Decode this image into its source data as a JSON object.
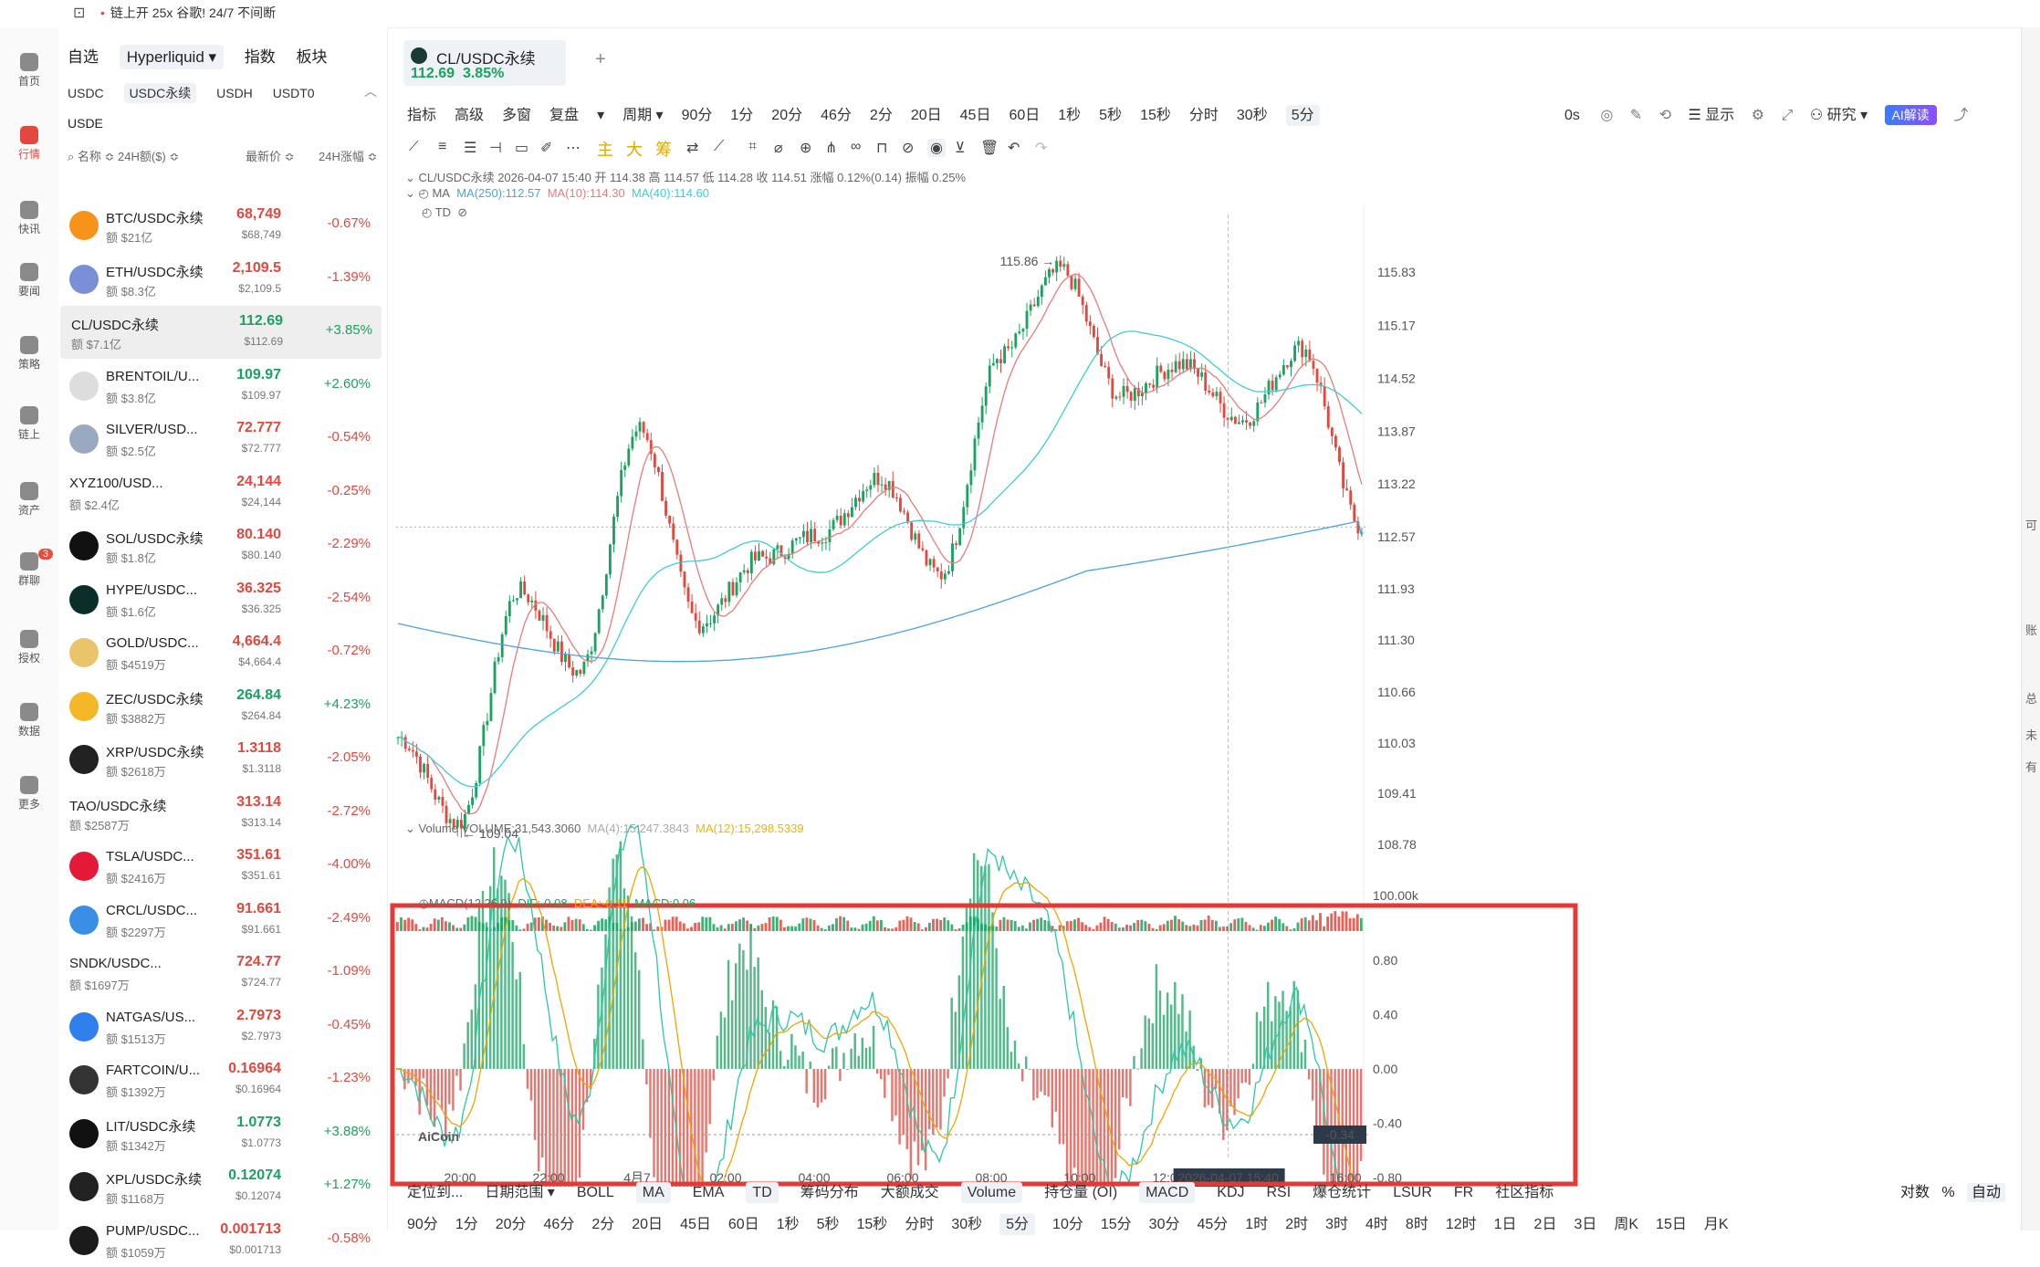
{
  "banner": {
    "text": "链上开 25x 谷歌! 24/7 不间断"
  },
  "rail": [
    {
      "label": "首页",
      "icon": "home-icon"
    },
    {
      "label": "行情",
      "icon": "chart-bars-icon",
      "active": true
    },
    {
      "label": "快讯",
      "icon": "news-icon"
    },
    {
      "label": "要闻",
      "icon": "document-icon"
    },
    {
      "label": "策略",
      "icon": "robot-icon"
    },
    {
      "label": "链上",
      "icon": "chain-icon"
    },
    {
      "label": "资产",
      "icon": "wallet-icon"
    },
    {
      "label": "群聊",
      "icon": "chat-icon",
      "badge": "3"
    },
    {
      "label": "授权",
      "icon": "key-icon"
    },
    {
      "label": "数据",
      "icon": "data-icon"
    },
    {
      "label": "更多",
      "icon": "grid-icon"
    }
  ],
  "market": {
    "tabs": [
      "自选",
      "Hyperliquid ▾",
      "指数",
      "板块"
    ],
    "subtabs": [
      "USDC",
      "USDC永续",
      "USDH",
      "USDT0"
    ],
    "extra_tab": "USDE",
    "headers": {
      "name": "名称 ≎ 24H额($) ≎",
      "price": "最新价 ≎",
      "change": "24H涨幅 ≎"
    },
    "rows": [
      {
        "name": "BTC/USDC永续",
        "vol": "额 $21亿",
        "price": "68,749",
        "sub": "$68,749",
        "chg": "-0.67%",
        "dir": "dn",
        "color": "#f7931a"
      },
      {
        "name": "ETH/USDC永续",
        "vol": "额 $8.3亿",
        "price": "2,109.5",
        "sub": "$2,109.5",
        "chg": "-1.39%",
        "dir": "dn",
        "color": "#7b8fd6"
      },
      {
        "name": "CL/USDC永续",
        "vol": "额 $7.1亿",
        "price": "112.69",
        "sub": "$112.69",
        "chg": "+3.85%",
        "dir": "up",
        "color": "",
        "selected": true
      },
      {
        "name": "BRENTOIL/U...",
        "vol": "额 $3.8亿",
        "price": "109.97",
        "sub": "$109.97",
        "chg": "+2.60%",
        "dir": "up",
        "color": "#dddddd"
      },
      {
        "name": "SILVER/USD...",
        "vol": "额 $2.5亿",
        "price": "72.777",
        "sub": "$72.777",
        "chg": "-0.54%",
        "dir": "dn",
        "color": "#9aa9bf"
      },
      {
        "name": "XYZ100/USD...",
        "vol": "额 $2.4亿",
        "price": "24,144",
        "sub": "$24,144",
        "chg": "-0.25%",
        "dir": "dn",
        "color": ""
      },
      {
        "name": "SOL/USDC永续",
        "vol": "额 $1.8亿",
        "price": "80.140",
        "sub": "$80.140",
        "chg": "-2.29%",
        "dir": "dn",
        "color": "#111111"
      },
      {
        "name": "HYPE/USDC...",
        "vol": "额 $1.6亿",
        "price": "36.325",
        "sub": "$36.325",
        "chg": "-2.54%",
        "dir": "dn",
        "color": "#0b2e2a"
      },
      {
        "name": "GOLD/USDC...",
        "vol": "额 $4519万",
        "price": "4,664.4",
        "sub": "$4,664.4",
        "chg": "-0.72%",
        "dir": "dn",
        "color": "#e9c46a"
      },
      {
        "name": "ZEC/USDC永续",
        "vol": "额 $3882万",
        "price": "264.84",
        "sub": "$264.84",
        "chg": "+4.23%",
        "dir": "up",
        "color": "#f4b728"
      },
      {
        "name": "XRP/USDC永续",
        "vol": "额 $2618万",
        "price": "1.3118",
        "sub": "$1.3118",
        "chg": "-2.05%",
        "dir": "dn",
        "color": "#222222"
      },
      {
        "name": "TAO/USDC永续",
        "vol": "额 $2587万",
        "price": "313.14",
        "sub": "$313.14",
        "chg": "-2.72%",
        "dir": "dn",
        "color": ""
      },
      {
        "name": "TSLA/USDC...",
        "vol": "额 $2416万",
        "price": "351.61",
        "sub": "$351.61",
        "chg": "-4.00%",
        "dir": "dn",
        "color": "#e31937"
      },
      {
        "name": "CRCL/USDC...",
        "vol": "额 $2297万",
        "price": "91.661",
        "sub": "$91.661",
        "chg": "-2.49%",
        "dir": "dn",
        "color": "#3a8ee6"
      },
      {
        "name": "SNDK/USDC...",
        "vol": "额 $1697万",
        "price": "724.77",
        "sub": "$724.77",
        "chg": "-1.09%",
        "dir": "dn",
        "color": ""
      },
      {
        "name": "NATGAS/US...",
        "vol": "额 $1513万",
        "price": "2.7973",
        "sub": "$2.7973",
        "chg": "-0.45%",
        "dir": "dn",
        "color": "#2f80ed"
      },
      {
        "name": "FARTCOIN/U...",
        "vol": "额 $1392万",
        "price": "0.16964",
        "sub": "$0.16964",
        "chg": "-1.23%",
        "dir": "dn",
        "color": "#333333"
      },
      {
        "name": "LIT/USDC永续",
        "vol": "额 $1342万",
        "price": "1.0773",
        "sub": "$1.0773",
        "chg": "+3.88%",
        "dir": "up",
        "color": "#111111"
      },
      {
        "name": "XPL/USDC永续",
        "vol": "额 $1168万",
        "price": "0.12074",
        "sub": "$0.12074",
        "chg": "+1.27%",
        "dir": "up",
        "color": "#222222"
      },
      {
        "name": "PUMP/USDC...",
        "vol": "额 $1059万",
        "price": "0.001713",
        "sub": "$0.001713",
        "chg": "-0.58%",
        "dir": "dn",
        "color": "#1b1b1b"
      }
    ]
  },
  "symbol": {
    "name": "CL/USDC永续",
    "price": "112.69",
    "change": "3.85%",
    "add": "+"
  },
  "toolbar": [
    "指标",
    "高级",
    "多窗",
    "复盘",
    "▾",
    "周期 ▾",
    "90分",
    "1分",
    "20分",
    "46分",
    "2分",
    "20日",
    "45日",
    "60日",
    "1秒",
    "5秒",
    "15秒",
    "分时",
    "30秒",
    "5分"
  ],
  "toolbar_selected": "5分",
  "toolbar_right": {
    "zero": "0s",
    "display": "显示",
    "research": "研究 ▾",
    "ai": "AI解读"
  },
  "draw_tools": {
    "main": "主",
    "big": "大",
    "chip": "筹"
  },
  "legends": {
    "ohlc": "CL/USDC永续  2026-04-07 15:40  开 114.38  高 114.57  低 114.28  收 114.51  涨幅 0.12%(0.14)  振幅 0.25%",
    "ma_label": "MA",
    "ma250": "MA(250):112.57",
    "ma10": "MA(10):114.30",
    "ma40": "MA(40):114.60",
    "td": "TD",
    "vol_label": "Volume  VOLUME:31,543.3060",
    "vol_ma4": "MA(4):15,247.3843",
    "vol_ma12": "MA(12):15,298.5339",
    "macd_label": "MACD(12,26,9)",
    "dif": "DIF:-0.08",
    "dea": "DEA:-0.11",
    "macd": "MACD:0.06",
    "high_mark": "115.86",
    "low_mark": "109.04",
    "logo": "AiCoin",
    "current_price": "112.69",
    "vol_axis": "100.00k",
    "macd_val": "-0.34",
    "crosshair_time": "2026-04-07 15:40"
  },
  "chart_data": {
    "type": "candlestick",
    "y_ticks": [
      "115.83",
      "115.17",
      "114.52",
      "113.87",
      "113.22",
      "112.57",
      "111.93",
      "111.30",
      "110.66",
      "110.03",
      "109.41",
      "108.78"
    ],
    "ylim": [
      108.5,
      116.2
    ],
    "x_ticks": [
      "20:00",
      "22:00",
      "4月7",
      "02:00",
      "04:00",
      "06:00",
      "08:00",
      "10:00",
      "12:00",
      "14:00",
      "16:00"
    ],
    "macd_ticks": [
      "0.80",
      "0.40",
      "0.00",
      "-0.40",
      "-0.80"
    ],
    "key_points": [
      {
        "label": "start",
        "value": 110.1
      },
      {
        "label": "low",
        "value": 109.04
      },
      {
        "label": "swing",
        "value": 111.9
      },
      {
        "label": "swing",
        "value": 110.9
      },
      {
        "label": "swing",
        "value": 113.9
      },
      {
        "label": "swing",
        "value": 111.5
      },
      {
        "label": "swing",
        "value": 112.3
      },
      {
        "label": "swing",
        "value": 112.6
      },
      {
        "label": "swing",
        "value": 113.3
      },
      {
        "label": "swing",
        "value": 112.1
      },
      {
        "label": "swing",
        "value": 114.8
      },
      {
        "label": "high",
        "value": 115.86
      },
      {
        "label": "swing",
        "value": 114.3
      },
      {
        "label": "swing",
        "value": 114.7
      },
      {
        "label": "swing",
        "value": 114.0
      },
      {
        "label": "swing",
        "value": 114.9
      },
      {
        "label": "last",
        "value": 112.69
      }
    ],
    "ma250_start": 111.5,
    "ma250_end": 112.57
  },
  "bottom_bar1": [
    "定位到...",
    "日期范围 ▾",
    "BOLL",
    "MA",
    "EMA",
    "TD",
    "筹码分布",
    "大额成交",
    "Volume",
    "持仓量 (OI)",
    "MACD",
    "KDJ",
    "RSI",
    "爆仓统计",
    "LSUR",
    "FR",
    "社区指标"
  ],
  "bottom_bar1_selected": [
    "MA",
    "TD",
    "Volume",
    "MACD"
  ],
  "bottom_bar1_right": [
    "对数",
    "%",
    "自动"
  ],
  "bottom_bar2": [
    "90分",
    "1分",
    "20分",
    "46分",
    "2分",
    "20日",
    "45日",
    "60日",
    "1秒",
    "5秒",
    "15秒",
    "分时",
    "30秒",
    "5分",
    "10分",
    "15分",
    "30分",
    "45分",
    "1时",
    "2时",
    "3时",
    "4时",
    "8时",
    "12时",
    "1日",
    "2日",
    "3日",
    "周K",
    "15日",
    "月K"
  ],
  "bottom_bar2_selected": "5分",
  "right_side": [
    "可",
    "账",
    "总",
    "未",
    "有"
  ],
  "colors": {
    "up": "#1aa260",
    "down": "#e2483d",
    "ma250": "#4aa3df",
    "ma10": "#e67c7c",
    "ma40": "#3ccfcf",
    "highlight": "#e53935"
  }
}
